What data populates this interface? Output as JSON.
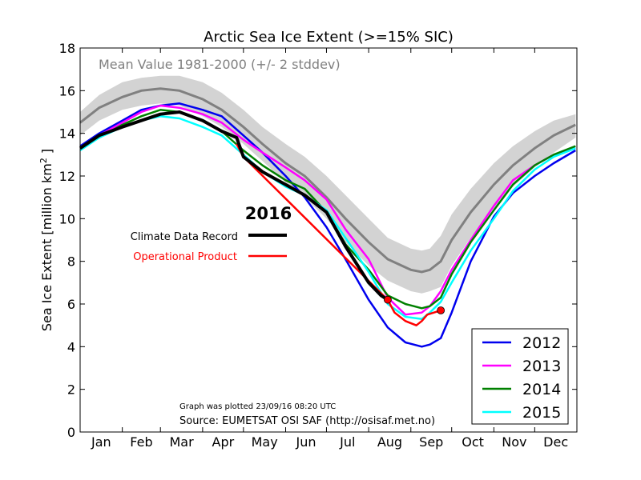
{
  "chart_data": {
    "type": "line",
    "title": "Arctic Sea Ice Extent (>=15% SIC)",
    "ylabel": "Sea Ice Extent [million km2]",
    "xlabel": "",
    "ylim": [
      0,
      18
    ],
    "yticks": [
      "0",
      "2",
      "4",
      "6",
      "8",
      "10",
      "12",
      "14",
      "16",
      "18"
    ],
    "months": [
      "Jan",
      "Feb",
      "Mar",
      "Apr",
      "May",
      "Jun",
      "Jul",
      "Aug",
      "Sep",
      "Oct",
      "Nov",
      "Dec"
    ],
    "grid": false,
    "mean_label": "Mean Value 1981-2000 (+/- 2 stddev)",
    "annotation_year": "2016",
    "cdr_label": "Climate Data Record",
    "operational_label": "Operational Product",
    "plotted_note": "Graph was plotted 23/09/16 08:20 UTC",
    "source_note": "Source: EUMETSAT OSI SAF (http://osisaf.met.no)",
    "legend_placement": "lower-right",
    "colors": {
      "mean": "#808080",
      "band": "#d3d3d3",
      "cdr": "#000000",
      "operational": "#ff0000",
      "2012": "#0000ee",
      "2013": "#ff00ff",
      "2014": "#008000",
      "2015": "#00ffff"
    },
    "mean": {
      "x": [
        1,
        15,
        32,
        46,
        60,
        74,
        91,
        105,
        121,
        135,
        152,
        166,
        182,
        196,
        213,
        227,
        244,
        252,
        258,
        266,
        274,
        288,
        305,
        319,
        335,
        349,
        365
      ],
      "y": [
        14.5,
        15.2,
        15.7,
        16.0,
        16.1,
        16.0,
        15.6,
        15.1,
        14.3,
        13.5,
        12.6,
        12.0,
        11.0,
        10.0,
        8.9,
        8.1,
        7.6,
        7.5,
        7.6,
        8.0,
        9.0,
        10.3,
        11.6,
        12.5,
        13.3,
        13.9,
        14.4
      ]
    },
    "stddev": {
      "x": [
        1,
        15,
        32,
        46,
        60,
        74,
        91,
        105,
        121,
        135,
        152,
        166,
        182,
        196,
        213,
        227,
        244,
        252,
        258,
        266,
        274,
        288,
        305,
        319,
        335,
        349,
        365
      ],
      "upper": [
        15.0,
        15.8,
        16.4,
        16.6,
        16.7,
        16.7,
        16.4,
        15.9,
        15.1,
        14.3,
        13.5,
        12.9,
        12.0,
        11.1,
        10.0,
        9.1,
        8.6,
        8.5,
        8.6,
        9.2,
        10.2,
        11.4,
        12.6,
        13.4,
        14.1,
        14.6,
        14.9
      ],
      "lower": [
        13.9,
        14.6,
        15.1,
        15.3,
        15.4,
        15.3,
        14.8,
        14.3,
        13.5,
        12.7,
        11.7,
        11.0,
        10.0,
        8.9,
        7.8,
        7.1,
        6.6,
        6.5,
        6.6,
        6.8,
        7.8,
        9.1,
        10.5,
        11.5,
        12.4,
        13.1,
        13.8
      ]
    },
    "series": [
      {
        "name": "2012",
        "x": [
          1,
          15,
          32,
          46,
          60,
          74,
          91,
          105,
          121,
          135,
          152,
          166,
          182,
          196,
          213,
          227,
          240,
          252,
          258,
          266,
          274,
          288,
          305,
          319,
          335,
          349,
          365
        ],
        "y": [
          13.4,
          14.0,
          14.6,
          15.1,
          15.3,
          15.4,
          15.1,
          14.8,
          13.9,
          13.1,
          12.0,
          11.0,
          9.6,
          8.1,
          6.2,
          4.9,
          4.2,
          4.0,
          4.1,
          4.4,
          5.6,
          8.0,
          10.1,
          11.2,
          12.0,
          12.6,
          13.2
        ]
      },
      {
        "name": "2013",
        "x": [
          1,
          15,
          32,
          46,
          60,
          74,
          91,
          105,
          121,
          135,
          152,
          166,
          182,
          196,
          213,
          227,
          240,
          252,
          258,
          266,
          274,
          288,
          305,
          319,
          335,
          349,
          365
        ],
        "y": [
          13.3,
          13.9,
          14.5,
          15.0,
          15.3,
          15.2,
          14.9,
          14.5,
          13.7,
          13.1,
          12.4,
          11.8,
          10.9,
          9.5,
          8.1,
          6.3,
          5.5,
          5.6,
          5.9,
          6.6,
          7.6,
          9.0,
          10.6,
          11.8,
          12.5,
          13.0,
          13.3
        ]
      },
      {
        "name": "2014",
        "x": [
          1,
          15,
          32,
          46,
          60,
          74,
          91,
          105,
          121,
          135,
          152,
          166,
          182,
          196,
          213,
          227,
          240,
          252,
          258,
          266,
          274,
          288,
          305,
          319,
          335,
          349,
          365
        ],
        "y": [
          13.3,
          13.8,
          14.4,
          14.8,
          15.1,
          15.0,
          14.6,
          14.1,
          13.2,
          12.5,
          11.8,
          11.4,
          10.3,
          8.8,
          7.6,
          6.4,
          6.0,
          5.8,
          5.9,
          6.3,
          7.4,
          8.9,
          10.4,
          11.6,
          12.5,
          13.0,
          13.4
        ]
      },
      {
        "name": "2015",
        "x": [
          1,
          15,
          32,
          46,
          60,
          74,
          91,
          105,
          121,
          135,
          152,
          166,
          182,
          196,
          213,
          227,
          240,
          252,
          258,
          266,
          274,
          288,
          305,
          319,
          335,
          349,
          365
        ],
        "y": [
          13.2,
          13.8,
          14.3,
          14.6,
          14.8,
          14.7,
          14.3,
          13.9,
          13.0,
          12.2,
          11.5,
          11.1,
          10.4,
          9.1,
          7.5,
          6.0,
          5.4,
          5.3,
          5.6,
          6.1,
          7.0,
          8.5,
          10.0,
          11.3,
          12.3,
          12.9,
          13.3
        ]
      }
    ],
    "cdr_2016": {
      "x": [
        1,
        15,
        32,
        46,
        60,
        74,
        91,
        105,
        116,
        121,
        135,
        152,
        166,
        182,
        196,
        213,
        222,
        227
      ],
      "y": [
        13.3,
        13.9,
        14.3,
        14.6,
        14.9,
        15.0,
        14.6,
        14.1,
        13.8,
        12.9,
        12.2,
        11.6,
        11.1,
        10.3,
        8.7,
        7.0,
        6.4,
        6.2
      ]
    },
    "operational_2016": {
      "x": [
        116,
        121,
        227,
        232,
        240,
        248,
        252,
        256,
        261,
        266
      ],
      "y": [
        13.5,
        12.9,
        6.2,
        5.6,
        5.2,
        5.0,
        5.2,
        5.5,
        5.6,
        5.7
      ]
    },
    "operational_markers": {
      "x": [
        227,
        266
      ],
      "y": [
        6.2,
        5.7
      ]
    }
  }
}
